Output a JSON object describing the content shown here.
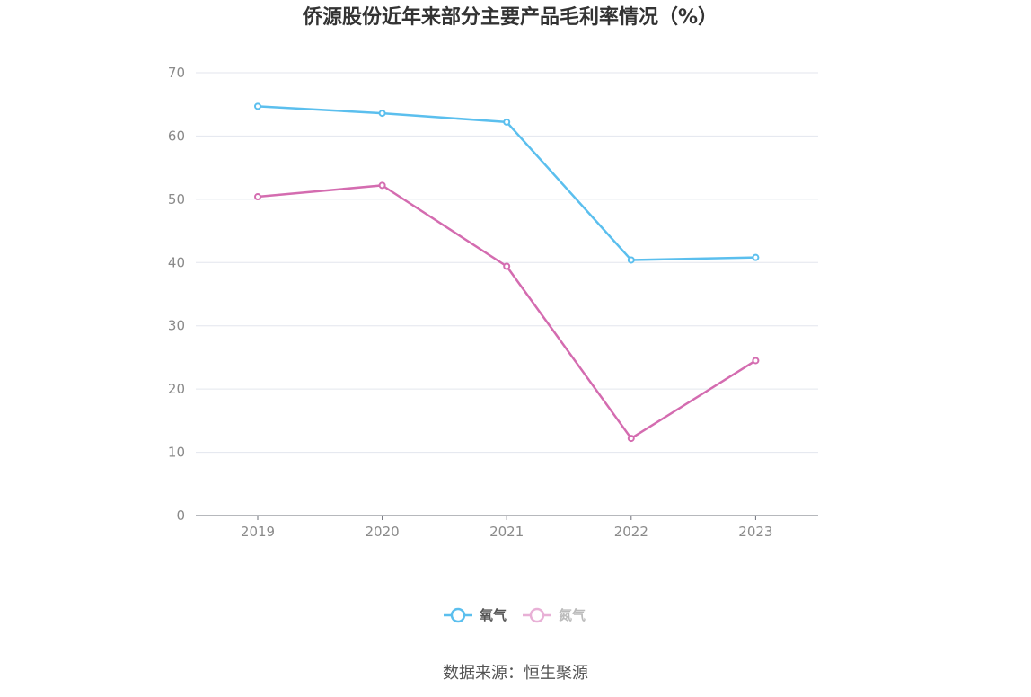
{
  "chart_data": {
    "type": "line",
    "title": "侨源股份近年来部分主要产品毛利率情况（%）",
    "categories": [
      "2019",
      "2020",
      "2021",
      "2022",
      "2023"
    ],
    "ylim": [
      0,
      70
    ],
    "yticks": [
      0,
      10,
      20,
      30,
      40,
      50,
      60,
      70
    ],
    "grid": true,
    "legend_position": "bottom",
    "series": [
      {
        "name": "氧气",
        "color": "#5bbfee",
        "values": [
          64.7,
          63.6,
          62.2,
          40.4,
          40.8
        ]
      },
      {
        "name": "氮气",
        "color": "#d46cb0",
        "legend_color": "#e8b0d6",
        "values": [
          50.4,
          52.2,
          39.4,
          12.2,
          24.5
        ]
      }
    ]
  },
  "source": "数据来源：恒生聚源"
}
